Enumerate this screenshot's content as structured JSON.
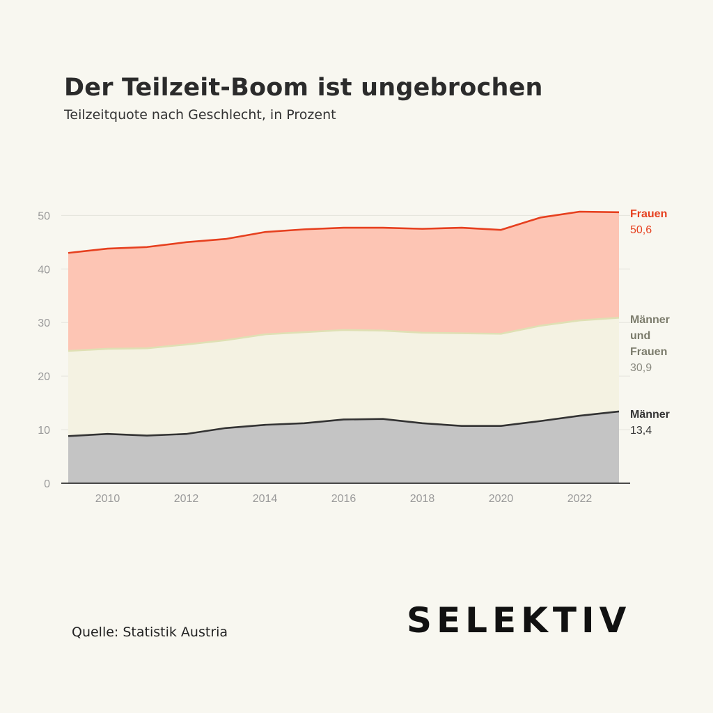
{
  "chart_data": {
    "type": "area",
    "title": "Der Teilzeit-Boom ist ungebrochen",
    "subtitle": "Teilzeitquote nach Geschlecht, in Prozent",
    "x": [
      2009,
      2010,
      2011,
      2012,
      2013,
      2014,
      2015,
      2016,
      2017,
      2018,
      2019,
      2020,
      2021,
      2022,
      2023
    ],
    "x_ticks": [
      2010,
      2012,
      2014,
      2016,
      2018,
      2020,
      2022
    ],
    "y_ticks": [
      0,
      10,
      20,
      30,
      40,
      50
    ],
    "ylim": [
      0,
      52
    ],
    "xlim": [
      2009,
      2023
    ],
    "grid": "horizontal",
    "legend": "direct labels at right end of lines",
    "series": [
      {
        "name": "Frauen",
        "end_label": [
          "Frauen"
        ],
        "end_value": "50,6",
        "color": "#e6401f",
        "fill": "#fdc5b4",
        "values": [
          43.0,
          43.8,
          44.1,
          45.0,
          45.6,
          46.9,
          47.4,
          47.7,
          47.7,
          47.5,
          47.7,
          47.3,
          49.6,
          50.7,
          50.6
        ]
      },
      {
        "name": "Männer und Frauen",
        "end_label": [
          "Männer",
          "und",
          "Frauen"
        ],
        "end_value": "30,9",
        "color": "#dfe0b4",
        "fill": "#f4f2e2",
        "label_color": "#7b7b6b",
        "values": [
          24.7,
          25.1,
          25.2,
          25.9,
          26.7,
          27.8,
          28.2,
          28.6,
          28.5,
          28.1,
          28.0,
          27.9,
          29.4,
          30.4,
          30.9
        ]
      },
      {
        "name": "Männer",
        "end_label": [
          "Männer"
        ],
        "end_value": "13,4",
        "color": "#333333",
        "fill": "#c4c4c4",
        "values": [
          8.8,
          9.2,
          8.9,
          9.2,
          10.3,
          10.9,
          11.2,
          11.9,
          12.0,
          11.2,
          10.7,
          10.7,
          11.6,
          12.6,
          13.4
        ]
      }
    ]
  },
  "source": "Quelle: Statistik Austria",
  "logo": "SELEKTIV"
}
